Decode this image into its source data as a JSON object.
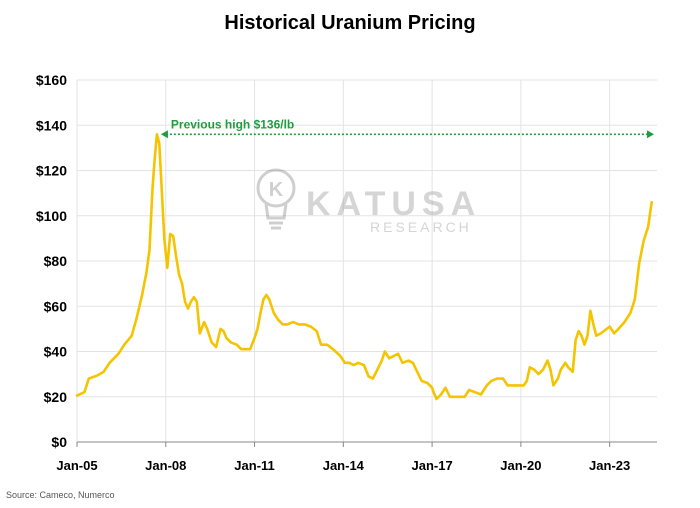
{
  "chart_data": {
    "type": "line",
    "title": "Historical Uranium Pricing",
    "xlabel": "",
    "ylabel": "",
    "ylim": [
      0,
      160
    ],
    "y_ticks": [
      0,
      20,
      40,
      60,
      80,
      100,
      120,
      140,
      160
    ],
    "y_tick_labels": [
      "$0",
      "$20",
      "$40",
      "$60",
      "$80",
      "$100",
      "$120",
      "$140",
      "$160"
    ],
    "xlim": [
      2005.0,
      2024.6
    ],
    "x_ticks": [
      2005,
      2008,
      2011,
      2014,
      2017,
      2020,
      2023
    ],
    "x_tick_labels": [
      "Jan-05",
      "Jan-08",
      "Jan-11",
      "Jan-14",
      "Jan-17",
      "Jan-20",
      "Jan-23"
    ],
    "grid": true,
    "line_color": "#F5C400",
    "series": [
      {
        "points": [
          [
            2005.0,
            20.5
          ],
          [
            2005.25,
            22
          ],
          [
            2005.4,
            28
          ],
          [
            2005.7,
            29.5
          ],
          [
            2005.9,
            31
          ],
          [
            2006.1,
            35
          ],
          [
            2006.4,
            39
          ],
          [
            2006.6,
            43
          ],
          [
            2006.85,
            47
          ],
          [
            2007.0,
            54
          ],
          [
            2007.2,
            65
          ],
          [
            2007.35,
            75
          ],
          [
            2007.45,
            85
          ],
          [
            2007.55,
            112
          ],
          [
            2007.62,
            124
          ],
          [
            2007.7,
            136
          ],
          [
            2007.78,
            132
          ],
          [
            2007.87,
            110
          ],
          [
            2007.95,
            90
          ],
          [
            2008.05,
            77
          ],
          [
            2008.15,
            92
          ],
          [
            2008.25,
            91
          ],
          [
            2008.35,
            82
          ],
          [
            2008.45,
            74
          ],
          [
            2008.55,
            70
          ],
          [
            2008.65,
            62
          ],
          [
            2008.75,
            59
          ],
          [
            2008.85,
            62
          ],
          [
            2008.95,
            64
          ],
          [
            2009.05,
            62
          ],
          [
            2009.15,
            48
          ],
          [
            2009.3,
            53
          ],
          [
            2009.4,
            50
          ],
          [
            2009.55,
            44
          ],
          [
            2009.7,
            42
          ],
          [
            2009.85,
            50
          ],
          [
            2009.95,
            49
          ],
          [
            2010.05,
            46
          ],
          [
            2010.2,
            44
          ],
          [
            2010.4,
            43
          ],
          [
            2010.55,
            41
          ],
          [
            2010.7,
            41
          ],
          [
            2010.85,
            41
          ],
          [
            2011.0,
            46
          ],
          [
            2011.1,
            50
          ],
          [
            2011.2,
            57
          ],
          [
            2011.3,
            63
          ],
          [
            2011.4,
            65
          ],
          [
            2011.5,
            63
          ],
          [
            2011.65,
            57
          ],
          [
            2011.8,
            54
          ],
          [
            2011.95,
            52
          ],
          [
            2012.1,
            52
          ],
          [
            2012.3,
            53
          ],
          [
            2012.5,
            52
          ],
          [
            2012.7,
            52
          ],
          [
            2012.9,
            51
          ],
          [
            2013.1,
            49
          ],
          [
            2013.25,
            43
          ],
          [
            2013.45,
            43
          ],
          [
            2013.65,
            41
          ],
          [
            2013.9,
            38
          ],
          [
            2014.05,
            35
          ],
          [
            2014.2,
            35
          ],
          [
            2014.35,
            34
          ],
          [
            2014.5,
            35
          ],
          [
            2014.7,
            34
          ],
          [
            2014.85,
            29
          ],
          [
            2015.0,
            28
          ],
          [
            2015.15,
            32
          ],
          [
            2015.3,
            36
          ],
          [
            2015.4,
            40
          ],
          [
            2015.55,
            37
          ],
          [
            2015.7,
            38
          ],
          [
            2015.85,
            39
          ],
          [
            2016.0,
            35
          ],
          [
            2016.2,
            36
          ],
          [
            2016.35,
            35
          ],
          [
            2016.5,
            31
          ],
          [
            2016.65,
            27
          ],
          [
            2016.85,
            26
          ],
          [
            2017.0,
            24
          ],
          [
            2017.05,
            22
          ],
          [
            2017.15,
            19
          ],
          [
            2017.3,
            21
          ],
          [
            2017.45,
            24
          ],
          [
            2017.6,
            20
          ],
          [
            2017.85,
            20
          ],
          [
            2018.1,
            20
          ],
          [
            2018.25,
            23
          ],
          [
            2018.45,
            22
          ],
          [
            2018.65,
            21
          ],
          [
            2018.85,
            25
          ],
          [
            2019.0,
            27
          ],
          [
            2019.2,
            28
          ],
          [
            2019.4,
            28
          ],
          [
            2019.55,
            25
          ],
          [
            2019.75,
            25
          ],
          [
            2019.9,
            25
          ],
          [
            2020.1,
            25
          ],
          [
            2020.2,
            27
          ],
          [
            2020.3,
            33
          ],
          [
            2020.45,
            32
          ],
          [
            2020.6,
            30
          ],
          [
            2020.75,
            32
          ],
          [
            2020.9,
            36
          ],
          [
            2021.0,
            32
          ],
          [
            2021.1,
            25
          ],
          [
            2021.25,
            28
          ],
          [
            2021.35,
            32
          ],
          [
            2021.5,
            35
          ],
          [
            2021.6,
            33
          ],
          [
            2021.75,
            31
          ],
          [
            2021.85,
            45
          ],
          [
            2021.95,
            49
          ],
          [
            2022.05,
            47
          ],
          [
            2022.15,
            43
          ],
          [
            2022.25,
            47
          ],
          [
            2022.35,
            58
          ],
          [
            2022.45,
            52
          ],
          [
            2022.55,
            47
          ],
          [
            2022.7,
            48
          ],
          [
            2022.9,
            50
          ],
          [
            2023.0,
            51
          ],
          [
            2023.15,
            48
          ],
          [
            2023.3,
            50
          ],
          [
            2023.5,
            53
          ],
          [
            2023.7,
            57
          ],
          [
            2023.85,
            63
          ],
          [
            2024.0,
            79
          ],
          [
            2024.15,
            89
          ],
          [
            2024.3,
            95
          ],
          [
            2024.42,
            106
          ]
        ]
      }
    ],
    "annotation": {
      "text": "Previous high $136/lb",
      "y": 136,
      "x_start": 2007.7,
      "x_end": 2024.5,
      "color": "#1F9D3E"
    }
  },
  "watermark": {
    "line1": "KATUSA",
    "line2": "RESEARCH",
    "monogram": "K"
  },
  "source_note": "Source: Cameco, Numerco"
}
